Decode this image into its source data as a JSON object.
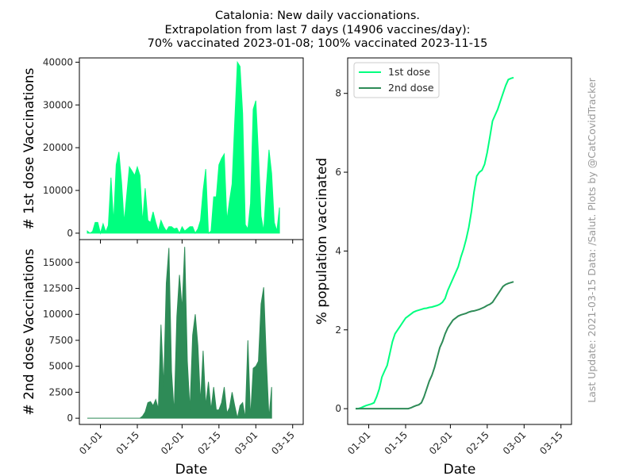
{
  "title_lines": [
    "Catalonia: New daily vaccionations.",
    "Extrapolation from last 7 days (14906 vaccines/day):",
    "70% vaccinated 2023-01-08; 100% vaccinated 2023-11-15"
  ],
  "side_note": "Last Update: 2021-03-15 Data: /Salut.    Plots by @CatCovidTracker",
  "colors": {
    "first": "#00ff7f",
    "second": "#2e8b57",
    "axis": "#000000",
    "side_note": "#999999"
  },
  "chart_data": [
    {
      "type": "area",
      "panel": "first-dose-daily",
      "ylabel": "# 1st dose Vaccinations",
      "xlabel": "",
      "x_start": "2020-12-27",
      "ylim": [
        -1500,
        41000
      ],
      "yticks": [
        0,
        10000,
        20000,
        30000,
        40000
      ],
      "ytick_labels": [
        "0",
        "10000",
        "20000",
        "30000",
        "40000"
      ],
      "xticks": [
        "2021-01-01",
        "2021-01-15",
        "2021-02-01",
        "2021-02-15",
        "2021-03-01",
        "2021-03-15"
      ],
      "series": [
        {
          "values": [
            500,
            0,
            400,
            2500,
            2500,
            0,
            2200,
            300,
            1800,
            13000,
            2500,
            16000,
            19000,
            12000,
            2500,
            9000,
            15500,
            14500,
            13500,
            15500,
            13500,
            2500,
            10500,
            3000,
            2500,
            5000,
            2500,
            500,
            3000,
            1500,
            500,
            1500,
            1500,
            1000,
            1200,
            0,
            1500,
            500,
            1000,
            1500,
            1500,
            0,
            1000,
            3000,
            10000,
            15000,
            0,
            500,
            8500,
            8500,
            16000,
            17500,
            18500,
            3000,
            7500,
            11500,
            26000,
            40000,
            39000,
            28000,
            2000,
            1000,
            7000,
            29000,
            31000,
            18500,
            4000,
            500,
            11000,
            19500,
            14000,
            2500,
            500,
            6000
          ]
        }
      ]
    },
    {
      "type": "area",
      "panel": "second-dose-daily",
      "ylabel": "# 2nd dose Vaccinations",
      "xlabel": "Date",
      "x_start": "2020-12-27",
      "ylim": [
        -600,
        17200
      ],
      "yticks": [
        0,
        2500,
        5000,
        7500,
        10000,
        12500,
        15000
      ],
      "ytick_labels": [
        "0",
        "2500",
        "5000",
        "7500",
        "10000",
        "12500",
        "15000"
      ],
      "xticks": [
        "2021-01-01",
        "2021-01-15",
        "2021-02-01",
        "2021-02-15",
        "2021-03-01",
        "2021-03-15"
      ],
      "xtick_labels": [
        "01-01",
        "01-15",
        "02-01",
        "02-15",
        "03-01",
        "03-15"
      ],
      "series": [
        {
          "values": [
            0,
            0,
            0,
            0,
            0,
            0,
            0,
            0,
            0,
            0,
            0,
            0,
            0,
            0,
            0,
            0,
            0,
            0,
            0,
            0,
            0,
            200,
            600,
            1500,
            1600,
            1200,
            1800,
            900,
            9000,
            3000,
            13000,
            16400,
            4500,
            500,
            9800,
            13800,
            10500,
            16500,
            5500,
            800,
            8000,
            10000,
            7000,
            1500,
            6500,
            1200,
            3500,
            800,
            3000,
            800,
            800,
            1500,
            3000,
            500,
            1000,
            2500,
            1200,
            0,
            1200,
            1500,
            0,
            7500,
            0,
            4800,
            5000,
            5500,
            11000,
            12600,
            5500,
            0,
            3000
          ]
        }
      ]
    },
    {
      "type": "line",
      "panel": "cumulative-percent",
      "ylabel": "% population vaccinated",
      "xlabel": "Date",
      "x_start": "2020-12-27",
      "ylim": [
        -0.4,
        8.9
      ],
      "yticks": [
        0,
        2,
        4,
        6,
        8
      ],
      "ytick_labels": [
        "0",
        "2",
        "4",
        "6",
        "8"
      ],
      "xticks": [
        "2021-01-01",
        "2021-01-15",
        "2021-02-01",
        "2021-02-15",
        "2021-03-01",
        "2021-03-15"
      ],
      "xtick_labels": [
        "01-01",
        "01-15",
        "02-01",
        "02-15",
        "03-01",
        "03-15"
      ],
      "legend": "top-left",
      "series": [
        {
          "name": "1st dose",
          "values": [
            0,
            0,
            0.02,
            0.05,
            0.08,
            0.1,
            0.12,
            0.15,
            0.3,
            0.5,
            0.8,
            0.95,
            1.1,
            1.4,
            1.7,
            1.9,
            2.0,
            2.1,
            2.2,
            2.3,
            2.35,
            2.4,
            2.45,
            2.48,
            2.5,
            2.52,
            2.54,
            2.55,
            2.57,
            2.58,
            2.6,
            2.62,
            2.65,
            2.7,
            2.8,
            3.0,
            3.15,
            3.3,
            3.45,
            3.6,
            3.85,
            4.05,
            4.3,
            4.6,
            5.0,
            5.5,
            5.9,
            6.0,
            6.05,
            6.2,
            6.5,
            6.9,
            7.3,
            7.45,
            7.6,
            7.8,
            8.0,
            8.2,
            8.35,
            8.38,
            8.4
          ]
        },
        {
          "name": "2nd dose",
          "values": [
            0,
            0,
            0,
            0,
            0,
            0,
            0,
            0,
            0,
            0,
            0,
            0,
            0,
            0,
            0,
            0,
            0,
            0,
            0,
            0,
            0,
            0.02,
            0.05,
            0.08,
            0.1,
            0.15,
            0.3,
            0.5,
            0.7,
            0.85,
            1.05,
            1.3,
            1.55,
            1.7,
            1.9,
            2.05,
            2.15,
            2.25,
            2.3,
            2.35,
            2.38,
            2.4,
            2.42,
            2.45,
            2.47,
            2.48,
            2.5,
            2.52,
            2.55,
            2.58,
            2.62,
            2.65,
            2.7,
            2.8,
            2.9,
            3.0,
            3.1,
            3.15,
            3.18,
            3.2,
            3.22
          ]
        }
      ]
    }
  ]
}
